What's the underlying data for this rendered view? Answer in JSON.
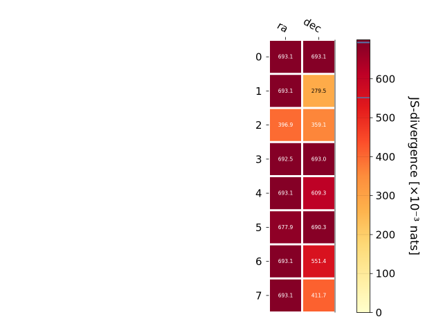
{
  "chart_data": {
    "type": "heatmap",
    "columns": [
      "ra",
      "dec"
    ],
    "rows": [
      "0",
      "1",
      "2",
      "3",
      "4",
      "5",
      "6",
      "7"
    ],
    "values": [
      [
        693.1,
        693.1
      ],
      [
        693.1,
        279.5
      ],
      [
        396.9,
        359.1
      ],
      [
        692.5,
        693.0
      ],
      [
        693.1,
        609.3
      ],
      [
        677.9,
        690.3
      ],
      [
        693.1,
        551.4
      ],
      [
        693.1,
        411.7
      ]
    ],
    "cell_labels": [
      [
        "693.1",
        "693.1"
      ],
      [
        "693.1",
        "279.5"
      ],
      [
        "396.9",
        "359.1"
      ],
      [
        "692.5",
        "693.0"
      ],
      [
        "693.1",
        "609.3"
      ],
      [
        "677.9",
        "690.3"
      ],
      [
        "693.1",
        "551.4"
      ],
      [
        "693.1",
        "411.7"
      ]
    ],
    "colorbar": {
      "label": "JS-divergence [×10⁻³ nats]",
      "min": 0,
      "max": 700,
      "ticks": [
        0,
        100,
        200,
        300,
        400,
        500,
        600
      ],
      "tick_labels": [
        "0",
        "100",
        "200",
        "300",
        "400",
        "500",
        "600"
      ],
      "colormap": "YlOrRd",
      "colors": [
        "#ffffcc",
        "#ffeda0",
        "#fed976",
        "#feb24c",
        "#fd8d3c",
        "#fc4e2a",
        "#e31a1c",
        "#bd0026",
        "#800026"
      ]
    },
    "grid": false
  }
}
